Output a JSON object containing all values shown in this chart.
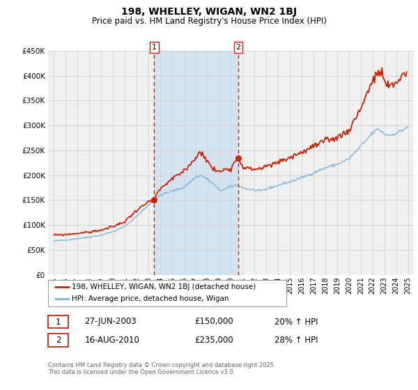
{
  "title": "198, WHELLEY, WIGAN, WN2 1BJ",
  "subtitle": "Price paid vs. HM Land Registry's House Price Index (HPI)",
  "legend_line1": "198, WHELLEY, WIGAN, WN2 1BJ (detached house)",
  "legend_line2": "HPI: Average price, detached house, Wigan",
  "sale1_label": "1",
  "sale1_date": "27-JUN-2003",
  "sale1_price": "£150,000",
  "sale1_hpi": "20% ↑ HPI",
  "sale2_label": "2",
  "sale2_date": "16-AUG-2010",
  "sale2_price": "£235,000",
  "sale2_hpi": "28% ↑ HPI",
  "footer": "Contains HM Land Registry data © Crown copyright and database right 2025.\nThis data is licensed under the Open Government Licence v3.0.",
  "hpi_color": "#7ab4dc",
  "price_color": "#cc2200",
  "sale_marker_color": "#cc2200",
  "bg_color": "#f0f0f0",
  "shade_color": "#cce0f0",
  "grid_color": "#cccccc",
  "vline_color": "#cc2200",
  "box_color": "#cc2200",
  "ylim": [
    0,
    450000
  ],
  "yticks": [
    0,
    50000,
    100000,
    150000,
    200000,
    250000,
    300000,
    350000,
    400000,
    450000
  ],
  "xlim_left": 1994.5,
  "xlim_right": 2025.5,
  "sale1_x": 2003.49,
  "sale1_y": 150000,
  "sale2_x": 2010.62,
  "sale2_y": 235000,
  "hpi_anchors": {
    "1995.0": 68000,
    "1996.0": 70000,
    "1997.0": 73000,
    "1998.0": 76000,
    "1999.0": 80000,
    "2000.0": 87000,
    "2001.0": 97000,
    "2002.0": 118000,
    "2003.0": 140000,
    "2004.0": 160000,
    "2005.0": 168000,
    "2006.0": 176000,
    "2007.0": 196000,
    "2007.5": 200000,
    "2008.0": 192000,
    "2008.5": 183000,
    "2009.0": 170000,
    "2009.5": 172000,
    "2010.0": 178000,
    "2010.5": 180000,
    "2011.0": 175000,
    "2011.5": 172000,
    "2012.0": 170000,
    "2012.5": 168000,
    "2013.0": 172000,
    "2014.0": 180000,
    "2015.0": 187000,
    "2016.0": 195000,
    "2017.0": 205000,
    "2018.0": 215000,
    "2019.0": 222000,
    "2020.0": 233000,
    "2021.0": 258000,
    "2022.0": 285000,
    "2022.5": 293000,
    "2023.0": 283000,
    "2023.5": 280000,
    "2024.0": 285000,
    "2024.5": 290000,
    "2025.0": 298000
  },
  "price_anchors": {
    "1995.0": 80000,
    "1996.0": 81000,
    "1997.0": 83500,
    "1998.0": 86000,
    "1999.0": 90000,
    "2000.0": 97000,
    "2001.0": 107000,
    "2002.0": 130000,
    "2003.0": 146000,
    "2003.49": 150000,
    "2004.0": 172000,
    "2005.0": 192000,
    "2006.0": 208000,
    "2007.0": 235000,
    "2007.5": 248000,
    "2008.0": 228000,
    "2008.5": 212000,
    "2009.0": 207000,
    "2009.5": 212000,
    "2010.0": 215000,
    "2010.62": 235000,
    "2011.0": 218000,
    "2011.5": 213000,
    "2012.0": 212000,
    "2013.0": 217000,
    "2014.0": 226000,
    "2015.0": 236000,
    "2016.0": 246000,
    "2017.0": 258000,
    "2018.0": 268000,
    "2019.0": 276000,
    "2020.0": 290000,
    "2021.0": 335000,
    "2022.0": 390000,
    "2022.5": 403000,
    "2022.8": 408000,
    "2023.0": 388000,
    "2023.3": 378000,
    "2023.7": 380000,
    "2024.0": 385000,
    "2024.5": 400000,
    "2024.9": 408000
  }
}
